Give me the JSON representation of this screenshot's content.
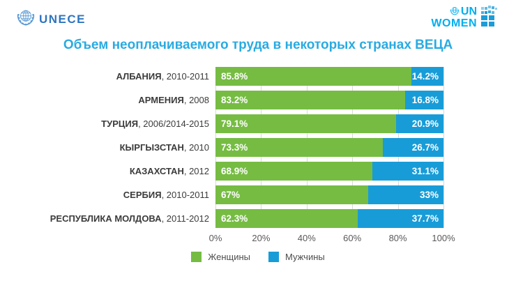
{
  "header": {
    "unece_label": "UNECE",
    "unwomen_line1": "UN",
    "unwomen_line2": "WOMEN"
  },
  "title": "Объем неоплачиваемого труда в некоторых странах ВЕЦА",
  "chart_data": {
    "type": "bar",
    "orientation": "horizontal_stacked",
    "title": "Объем неоплачиваемого труда в некоторых странах ВЕЦА",
    "categories": [
      "АЛБАНИЯ, 2010-2011",
      "АРМЕНИЯ, 2008",
      "ТУРЦИЯ, 2006/2014-2015",
      "КЫРГЫЗСТАН, 2010",
      "КАЗАХСТАН, 2012",
      "СЕРБИЯ, 2010-2011",
      "РЕСПУБЛИКА МОЛДОВА, 2011-2012"
    ],
    "series": [
      {
        "name": "Женщины",
        "color": "#76bc43",
        "values": [
          85.8,
          83.2,
          79.1,
          73.3,
          68.9,
          67,
          62.3
        ]
      },
      {
        "name": "Мужчины",
        "color": "#189cd8",
        "values": [
          14.2,
          16.8,
          20.9,
          26.7,
          31.1,
          33,
          37.7
        ]
      }
    ],
    "xlim": [
      0,
      100
    ],
    "x_ticks": [
      "0%",
      "20%",
      "40%",
      "60%",
      "80%",
      "100%"
    ],
    "grid": "vertical",
    "legend_position": "bottom"
  },
  "rows": [
    {
      "country": "АЛБАНИЯ",
      "period": ", 2010-2011",
      "women": 85.8,
      "men": 14.2,
      "women_label": "85.8%",
      "men_label": "14.2%"
    },
    {
      "country": "АРМЕНИЯ",
      "period": ", 2008",
      "women": 83.2,
      "men": 16.8,
      "women_label": "83.2%",
      "men_label": "16.8%"
    },
    {
      "country": "ТУРЦИЯ",
      "period": ", 2006/2014-2015",
      "women": 79.1,
      "men": 20.9,
      "women_label": "79.1%",
      "men_label": "20.9%"
    },
    {
      "country": "КЫРГЫЗСТАН",
      "period": ", 2010",
      "women": 73.3,
      "men": 26.7,
      "women_label": "73.3%",
      "men_label": "26.7%"
    },
    {
      "country": "КАЗАХСТАН",
      "period": ", 2012",
      "women": 68.9,
      "men": 31.1,
      "women_label": "68.9%",
      "men_label": "31.1%"
    },
    {
      "country": "СЕРБИЯ",
      "period": ", 2010-2011",
      "women": 67,
      "men": 33,
      "women_label": "67%",
      "men_label": "33%"
    },
    {
      "country": "РЕСПУБЛИКА МОЛДОВА",
      "period": ", 2011-2012",
      "women": 62.3,
      "men": 37.7,
      "women_label": "62.3%",
      "men_label": "37.7%"
    }
  ],
  "colors": {
    "title": "#29abe2",
    "women_bar": "#76bc43",
    "men_bar": "#189cd8",
    "unece_blue": "#2e75be",
    "unwomen_blue": "#00aeef",
    "gridline": "#d9d9d9"
  }
}
